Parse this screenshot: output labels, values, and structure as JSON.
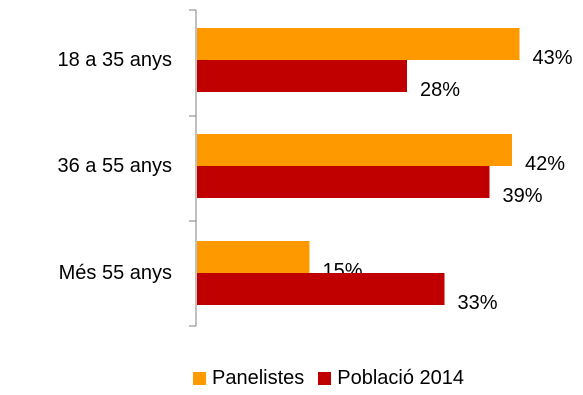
{
  "chart_data": {
    "type": "bar",
    "orientation": "horizontal",
    "categories": [
      "18 a 35 anys",
      "36 a 55 anys",
      "Més 55 anys"
    ],
    "series": [
      {
        "name": "Panelistes",
        "values": [
          43,
          42,
          15
        ],
        "labels": [
          "43%",
          "42%",
          "15%"
        ],
        "color": "#ff9900"
      },
      {
        "name": "Població 2014",
        "values": [
          28,
          39,
          33
        ],
        "labels": [
          "28%",
          "39%",
          "33%"
        ],
        "color": "#c00000"
      }
    ],
    "unit": "%",
    "title": "",
    "xlabel": "",
    "ylabel": "",
    "xlim": [
      0,
      43
    ],
    "grid": false,
    "legend_position": "bottom"
  },
  "legend": {
    "items": [
      {
        "label": "Panelistes",
        "color": "#ff9900"
      },
      {
        "label": "Població 2014",
        "color": "#c00000"
      }
    ]
  }
}
